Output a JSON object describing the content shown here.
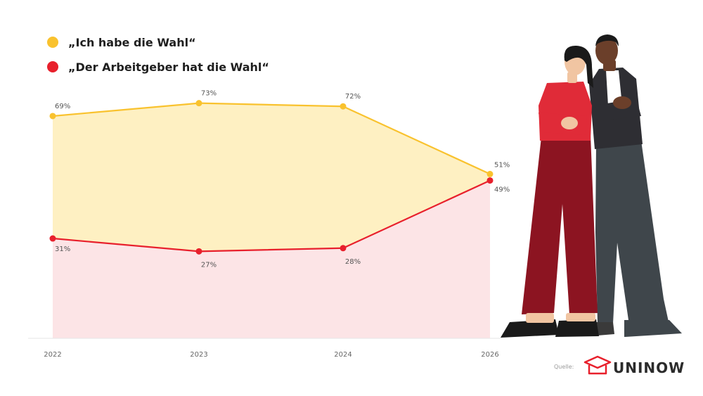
{
  "chart_data": {
    "type": "area",
    "categories": [
      "2022",
      "2023",
      "2024",
      "2026"
    ],
    "ylim": [
      0,
      100
    ],
    "series": [
      {
        "name": "„Ich habe die Wahl“",
        "values": [
          69,
          73,
          72,
          51
        ],
        "labels": [
          "69%",
          "73%",
          "72%",
          "51%"
        ],
        "color": "#F9C22E",
        "fill": "#FEF0C2"
      },
      {
        "name": "„Der Arbeitgeber hat die Wahl“",
        "values": [
          31,
          27,
          28,
          49
        ],
        "labels": [
          "31%",
          "27%",
          "28%",
          "49%"
        ],
        "color": "#E8202C",
        "fill": "#FCE4E6"
      }
    ],
    "legend": "top-left"
  },
  "footer": {
    "source_label": "Quelle:",
    "brand": "UNINOW",
    "brand_color": "#E8202C"
  },
  "illustration": {
    "icon": "two-people-arms-crossed-illustration",
    "woman_top": "#E02B38",
    "woman_pants": "#8C1421",
    "man_top": "#2E2E33",
    "man_pants": "#3F464B",
    "skin": "#F1C5A2",
    "skin_dark": "#6B3F2A"
  }
}
